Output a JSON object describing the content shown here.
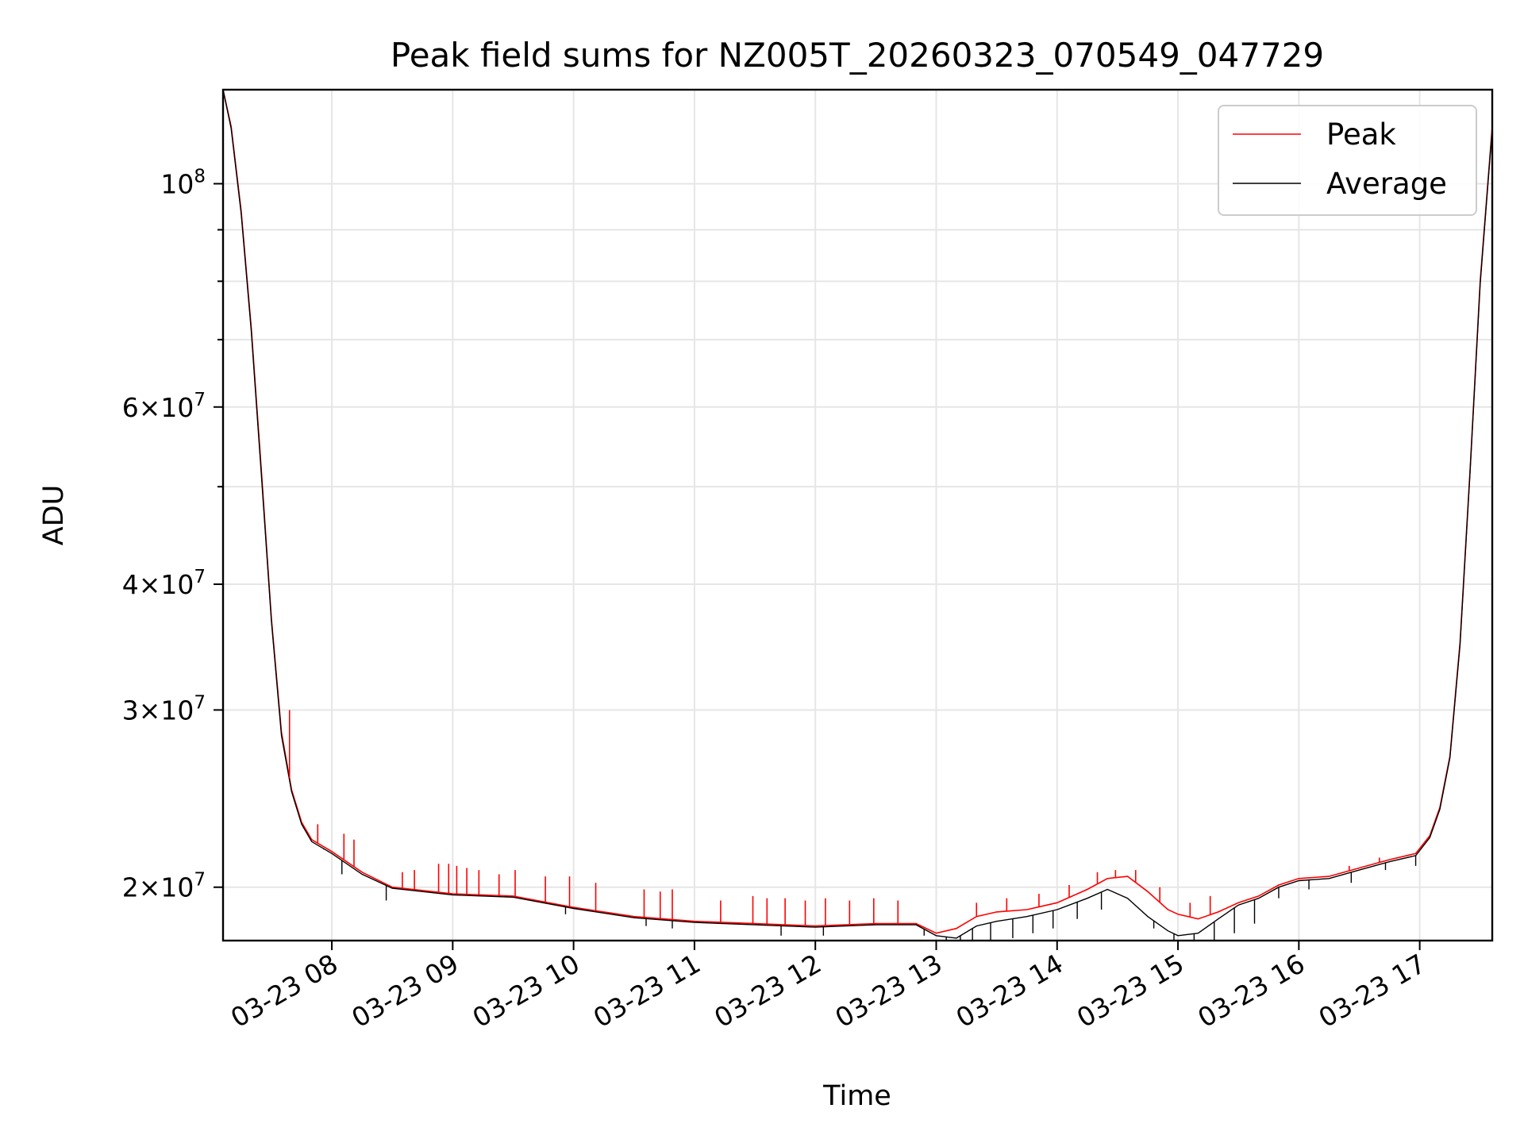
{
  "chart_data": {
    "type": "line",
    "title": "Peak field sums for NZ005T_20260323_070549_047729",
    "xlabel": "Time",
    "ylabel": "ADU",
    "y_scale": "log",
    "grid": true,
    "legend_position": "top-right",
    "xlim": [
      "2026-03-23 07:06",
      "2026-03-23 17:36"
    ],
    "ylim": [
      17700000,
      124000000
    ],
    "x_ticks": [
      "2026-03-23 08:00",
      "2026-03-23 09:00",
      "2026-03-23 10:00",
      "2026-03-23 11:00",
      "2026-03-23 12:00",
      "2026-03-23 13:00",
      "2026-03-23 14:00",
      "2026-03-23 15:00",
      "2026-03-23 16:00",
      "2026-03-23 17:00"
    ],
    "x_tick_labels": [
      "03-23 08",
      "03-23 09",
      "03-23 10",
      "03-23 11",
      "03-23 12",
      "03-23 13",
      "03-23 14",
      "03-23 15",
      "03-23 16",
      "03-23 17"
    ],
    "y_ticks": [
      {
        "value": 100000000,
        "mantissa": "",
        "exponent": "8"
      },
      {
        "value": 60000000,
        "mantissa": "6",
        "exponent": "7"
      },
      {
        "value": 40000000,
        "mantissa": "4",
        "exponent": "7"
      },
      {
        "value": 30000000,
        "mantissa": "3",
        "exponent": "7"
      },
      {
        "value": 20000000,
        "mantissa": "2",
        "exponent": "7"
      }
    ],
    "y_minor_ticks": [
      50000000,
      70000000,
      80000000,
      90000000
    ],
    "series": [
      {
        "name": "Peak",
        "color": "#ff0000",
        "x": [
          "2026-03-23 07:06",
          "2026-03-23 07:10",
          "2026-03-23 07:15",
          "2026-03-23 07:20",
          "2026-03-23 07:25",
          "2026-03-23 07:30",
          "2026-03-23 07:35",
          "2026-03-23 07:40",
          "2026-03-23 07:45",
          "2026-03-23 07:50",
          "2026-03-23 08:00",
          "2026-03-23 08:15",
          "2026-03-23 08:30",
          "2026-03-23 09:00",
          "2026-03-23 09:30",
          "2026-03-23 10:00",
          "2026-03-23 10:30",
          "2026-03-23 11:00",
          "2026-03-23 11:30",
          "2026-03-23 12:00",
          "2026-03-23 12:30",
          "2026-03-23 12:50",
          "2026-03-23 13:00",
          "2026-03-23 13:10",
          "2026-03-23 13:20",
          "2026-03-23 13:30",
          "2026-03-23 13:45",
          "2026-03-23 14:00",
          "2026-03-23 14:15",
          "2026-03-23 14:25",
          "2026-03-23 14:35",
          "2026-03-23 14:45",
          "2026-03-23 14:55",
          "2026-03-23 15:00",
          "2026-03-23 15:10",
          "2026-03-23 15:20",
          "2026-03-23 15:30",
          "2026-03-23 15:40",
          "2026-03-23 15:50",
          "2026-03-23 16:00",
          "2026-03-23 16:15",
          "2026-03-23 16:30",
          "2026-03-23 16:45",
          "2026-03-23 16:58",
          "2026-03-23 17:05",
          "2026-03-23 17:10",
          "2026-03-23 17:15",
          "2026-03-23 17:20",
          "2026-03-23 17:25",
          "2026-03-23 17:30",
          "2026-03-23 17:36"
        ],
        "y": [
          124000000,
          114000000,
          94000000,
          72000000,
          52000000,
          37000000,
          28500000,
          25000000,
          23200000,
          22300000,
          21700000,
          20700000,
          20000000,
          19700000,
          19600000,
          19100000,
          18700000,
          18500000,
          18400000,
          18300000,
          18400000,
          18400000,
          18000000,
          18200000,
          18700000,
          18900000,
          19000000,
          19300000,
          19900000,
          20400000,
          20500000,
          19800000,
          19000000,
          18800000,
          18600000,
          18900000,
          19300000,
          19600000,
          20100000,
          20400000,
          20500000,
          20900000,
          21300000,
          21600000,
          22500000,
          24000000,
          27000000,
          35000000,
          52000000,
          80000000,
          114000000
        ]
      },
      {
        "name": "Average",
        "color": "#000000",
        "x": [
          "2026-03-23 07:06",
          "2026-03-23 07:10",
          "2026-03-23 07:15",
          "2026-03-23 07:20",
          "2026-03-23 07:25",
          "2026-03-23 07:30",
          "2026-03-23 07:35",
          "2026-03-23 07:40",
          "2026-03-23 07:45",
          "2026-03-23 07:50",
          "2026-03-23 08:00",
          "2026-03-23 08:15",
          "2026-03-23 08:30",
          "2026-03-23 09:00",
          "2026-03-23 09:30",
          "2026-03-23 10:00",
          "2026-03-23 10:30",
          "2026-03-23 11:00",
          "2026-03-23 11:30",
          "2026-03-23 12:00",
          "2026-03-23 12:30",
          "2026-03-23 12:50",
          "2026-03-23 13:00",
          "2026-03-23 13:10",
          "2026-03-23 13:20",
          "2026-03-23 13:30",
          "2026-03-23 13:45",
          "2026-03-23 14:00",
          "2026-03-23 14:15",
          "2026-03-23 14:25",
          "2026-03-23 14:35",
          "2026-03-23 14:45",
          "2026-03-23 14:55",
          "2026-03-23 15:00",
          "2026-03-23 15:10",
          "2026-03-23 15:20",
          "2026-03-23 15:30",
          "2026-03-23 15:40",
          "2026-03-23 15:50",
          "2026-03-23 16:00",
          "2026-03-23 16:15",
          "2026-03-23 16:30",
          "2026-03-23 16:45",
          "2026-03-23 16:58",
          "2026-03-23 17:05",
          "2026-03-23 17:10",
          "2026-03-23 17:15",
          "2026-03-23 17:20",
          "2026-03-23 17:25",
          "2026-03-23 17:30",
          "2026-03-23 17:36"
        ],
        "y": [
          124000000,
          113500000,
          93500000,
          71500000,
          51500000,
          36800000,
          28300000,
          24900000,
          23100000,
          22200000,
          21600000,
          20600000,
          19950000,
          19650000,
          19550000,
          19050000,
          18650000,
          18450000,
          18350000,
          18250000,
          18350000,
          18350000,
          17900000,
          17800000,
          18300000,
          18500000,
          18700000,
          19000000,
          19500000,
          19900000,
          19500000,
          18700000,
          18100000,
          17900000,
          18000000,
          18600000,
          19200000,
          19500000,
          20000000,
          20300000,
          20400000,
          20800000,
          21200000,
          21500000,
          22400000,
          23900000,
          26900000,
          34800000,
          51800000,
          79500000,
          113500000
        ]
      }
    ],
    "spikes": {
      "peak_up": [
        [
          "2026-03-23 07:39",
          30000000
        ],
        [
          "2026-03-23 07:53",
          23100000
        ],
        [
          "2026-03-23 08:06",
          22600000
        ],
        [
          "2026-03-23 08:11",
          22300000
        ],
        [
          "2026-03-23 08:35",
          20700000
        ],
        [
          "2026-03-23 08:41",
          20800000
        ],
        [
          "2026-03-23 08:53",
          21100000
        ],
        [
          "2026-03-23 08:58",
          21100000
        ],
        [
          "2026-03-23 09:02",
          21000000
        ],
        [
          "2026-03-23 09:07",
          20900000
        ],
        [
          "2026-03-23 09:13",
          20800000
        ],
        [
          "2026-03-23 09:23",
          20600000
        ],
        [
          "2026-03-23 09:31",
          20800000
        ],
        [
          "2026-03-23 09:46",
          20500000
        ],
        [
          "2026-03-23 09:58",
          20500000
        ],
        [
          "2026-03-23 10:11",
          20200000
        ],
        [
          "2026-03-23 10:35",
          19900000
        ],
        [
          "2026-03-23 10:43",
          19800000
        ],
        [
          "2026-03-23 10:49",
          19900000
        ],
        [
          "2026-03-23 11:13",
          19400000
        ],
        [
          "2026-03-23 11:29",
          19600000
        ],
        [
          "2026-03-23 11:36",
          19500000
        ],
        [
          "2026-03-23 11:45",
          19500000
        ],
        [
          "2026-03-23 11:55",
          19400000
        ],
        [
          "2026-03-23 12:05",
          19500000
        ],
        [
          "2026-03-23 12:17",
          19400000
        ],
        [
          "2026-03-23 12:29",
          19500000
        ],
        [
          "2026-03-23 12:41",
          19400000
        ],
        [
          "2026-03-23 13:20",
          19300000
        ],
        [
          "2026-03-23 13:35",
          19500000
        ],
        [
          "2026-03-23 13:51",
          19700000
        ],
        [
          "2026-03-23 14:06",
          20100000
        ],
        [
          "2026-03-23 14:20",
          20700000
        ],
        [
          "2026-03-23 14:29",
          20800000
        ],
        [
          "2026-03-23 14:39",
          20800000
        ],
        [
          "2026-03-23 14:51",
          20000000
        ],
        [
          "2026-03-23 15:06",
          19300000
        ],
        [
          "2026-03-23 15:16",
          19600000
        ],
        [
          "2026-03-23 16:25",
          21000000
        ],
        [
          "2026-03-23 16:40",
          21400000
        ]
      ],
      "average_down": [
        [
          "2026-03-23 07:56",
          21800000
        ],
        [
          "2026-03-23 08:05",
          20600000
        ],
        [
          "2026-03-23 08:27",
          19400000
        ],
        [
          "2026-03-23 09:56",
          18800000
        ],
        [
          "2026-03-23 10:36",
          18300000
        ],
        [
          "2026-03-23 10:49",
          18200000
        ],
        [
          "2026-03-23 11:43",
          17900000
        ],
        [
          "2026-03-23 12:04",
          17900000
        ],
        [
          "2026-03-23 12:54",
          17900000
        ],
        [
          "2026-03-23 13:05",
          17400000
        ],
        [
          "2026-03-23 13:12",
          17300000
        ],
        [
          "2026-03-23 13:18",
          17200000
        ],
        [
          "2026-03-23 13:27",
          17500000
        ],
        [
          "2026-03-23 13:38",
          17800000
        ],
        [
          "2026-03-23 13:48",
          18000000
        ],
        [
          "2026-03-23 13:58",
          18200000
        ],
        [
          "2026-03-23 14:10",
          18600000
        ],
        [
          "2026-03-23 14:22",
          19000000
        ],
        [
          "2026-03-23 14:48",
          18200000
        ],
        [
          "2026-03-23 14:58",
          17600000
        ],
        [
          "2026-03-23 15:08",
          17500000
        ],
        [
          "2026-03-23 15:18",
          17700000
        ],
        [
          "2026-03-23 15:28",
          18000000
        ],
        [
          "2026-03-23 15:38",
          18400000
        ],
        [
          "2026-03-23 15:50",
          19500000
        ],
        [
          "2026-03-23 16:05",
          19900000
        ],
        [
          "2026-03-23 16:26",
          20200000
        ],
        [
          "2026-03-23 16:43",
          20800000
        ],
        [
          "2026-03-23 16:58",
          21000000
        ]
      ]
    }
  }
}
